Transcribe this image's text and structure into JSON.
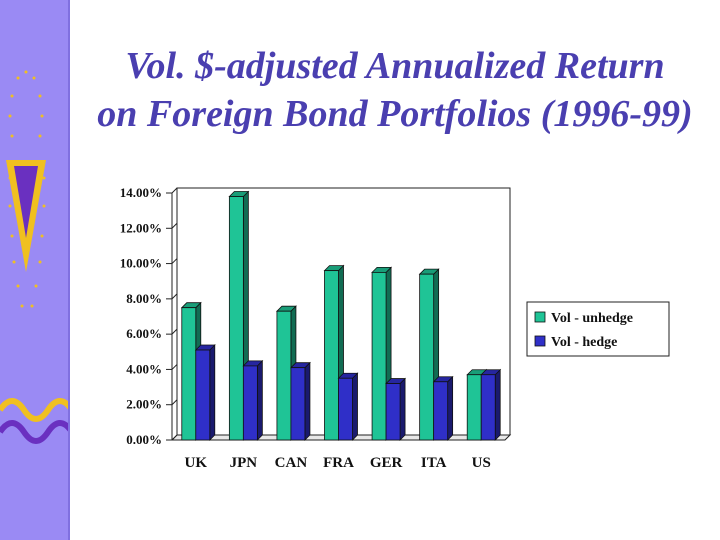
{
  "slide": {
    "title_line1": "Vol. $-adjusted Annualized Return",
    "title_line2": "on Foreign Bond Portfolios (1996-99)"
  },
  "colors": {
    "sidebar": "#9a8af4",
    "title": "#4a3fb0",
    "series_unhedge": "#1fc496",
    "series_hedge": "#2f2fc8"
  },
  "chart_data": {
    "type": "bar",
    "title": "",
    "xlabel": "",
    "ylabel": "",
    "ylim": [
      0,
      14
    ],
    "y_ticks": [
      "0.00%",
      "2.00%",
      "4.00%",
      "6.00%",
      "8.00%",
      "10.00%",
      "12.00%",
      "14.00%"
    ],
    "categories": [
      "UK",
      "JPN",
      "CAN",
      "FRA",
      "GER",
      "ITA",
      "US"
    ],
    "series": [
      {
        "name": "Vol - unhedge",
        "values": [
          7.5,
          13.8,
          7.3,
          9.6,
          9.5,
          9.4,
          3.7
        ]
      },
      {
        "name": "Vol - hedge",
        "values": [
          5.1,
          4.2,
          4.1,
          3.5,
          3.2,
          3.3,
          3.7
        ]
      }
    ],
    "legend_position": "right",
    "grid": false
  }
}
